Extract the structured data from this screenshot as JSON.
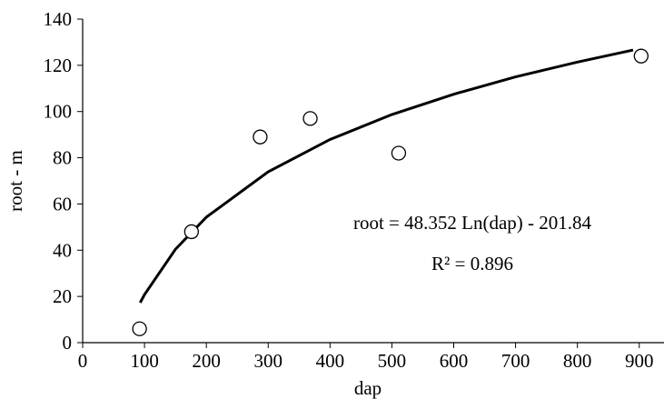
{
  "chart_data": {
    "type": "scatter",
    "x_label": "dap",
    "y_label": "root - m",
    "annotations": [
      "root = 48.352 Ln(dap) - 201.84",
      "R² = 0.896"
    ],
    "x": [
      92,
      176,
      287,
      368,
      511,
      903
    ],
    "values": [
      6,
      48,
      89,
      97,
      82,
      124
    ],
    "color": "#000000",
    "trendline": {
      "x": [
        93,
        100,
        150,
        200,
        300,
        400,
        500,
        600,
        700,
        800,
        890
      ],
      "values": [
        17.3,
        20.8,
        40.4,
        54.3,
        73.9,
        87.9,
        98.7,
        107.5,
        115.0,
        121.4,
        126.6
      ]
    },
    "xlim": [
      0,
      940
    ],
    "xticks": [
      0,
      100,
      200,
      300,
      400,
      500,
      600,
      700,
      800,
      900
    ],
    "ylim": [
      0,
      140
    ],
    "yticks": [
      0,
      20,
      40,
      60,
      80,
      100,
      120,
      140
    ],
    "grid": false
  }
}
